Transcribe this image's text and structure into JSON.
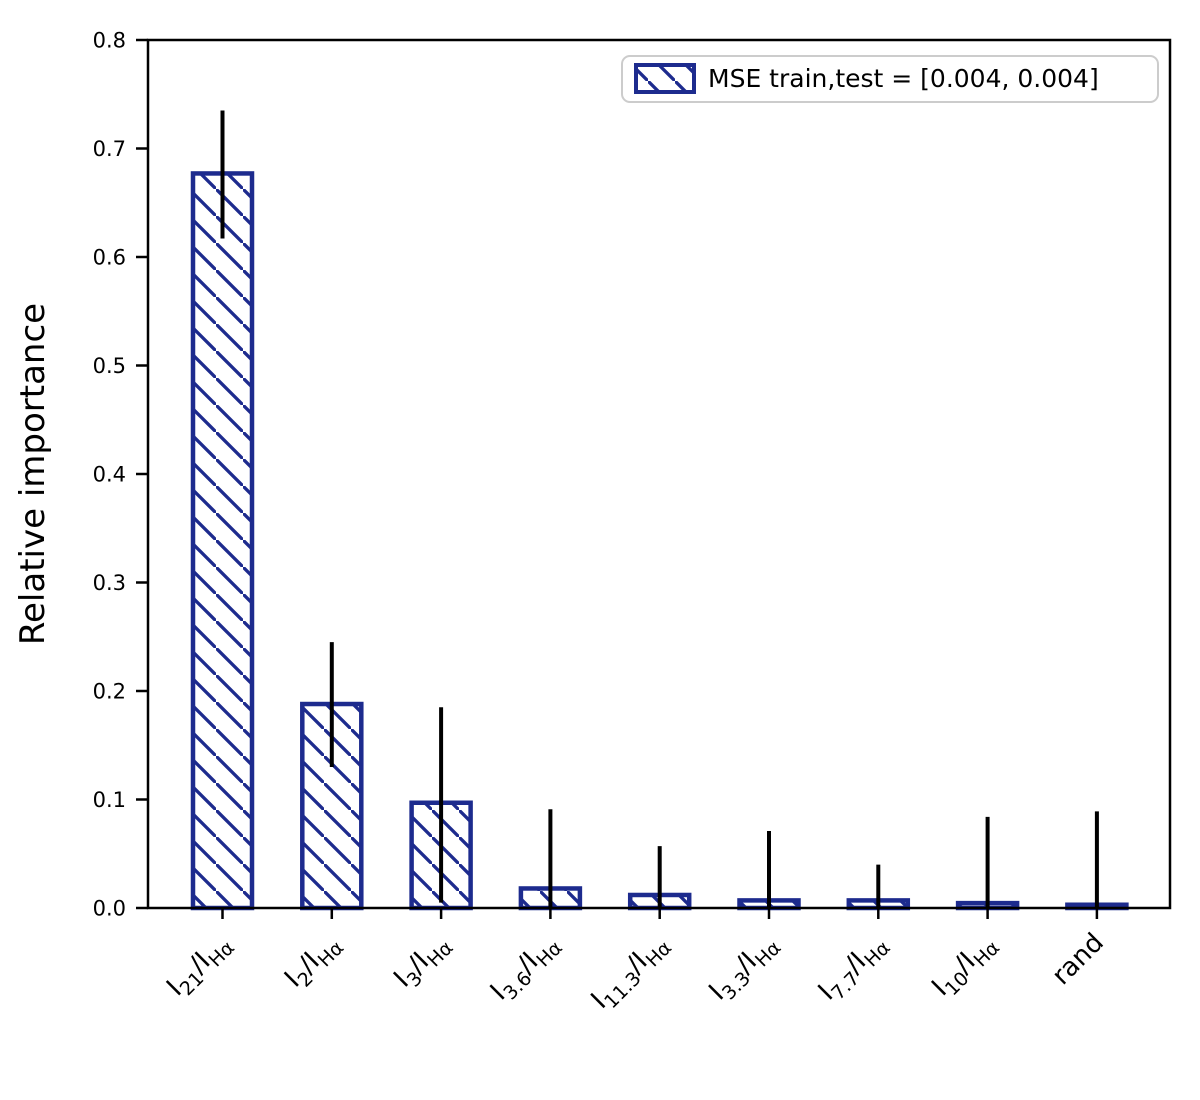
{
  "chart_data": {
    "type": "bar",
    "title": "",
    "xlabel": "",
    "ylabel": "Relative importance",
    "ylim": [
      0.0,
      0.8
    ],
    "yticks": [
      "0.0",
      "0.1",
      "0.2",
      "0.3",
      "0.4",
      "0.5",
      "0.6",
      "0.7",
      "0.8"
    ],
    "grid": false,
    "legend": {
      "position": "upper right",
      "label": "MSE train,test = [0.004, 0.004]",
      "swatch": "hatched-bar"
    },
    "bar_style": {
      "fill": "#ffffff",
      "edge_color": "#1d2b8e",
      "hatch": "\\",
      "error_color": "#000000"
    },
    "categories": [
      "I21/IHa",
      "I2/IHa",
      "I3/IHa",
      "I3.6/IHa",
      "I11.3/IHa",
      "I3.3/IHa",
      "I7.7/IHa",
      "I10/IHa",
      "rand"
    ],
    "categories_rich": [
      {
        "parts": [
          [
            "I",
            0
          ],
          [
            "21",
            1
          ],
          [
            "/I",
            0
          ],
          [
            "Hα",
            1
          ]
        ]
      },
      {
        "parts": [
          [
            "I",
            0
          ],
          [
            "2",
            1
          ],
          [
            "/I",
            0
          ],
          [
            "Hα",
            1
          ]
        ]
      },
      {
        "parts": [
          [
            "I",
            0
          ],
          [
            "3",
            1
          ],
          [
            "/I",
            0
          ],
          [
            "Hα",
            1
          ]
        ]
      },
      {
        "parts": [
          [
            "I",
            0
          ],
          [
            "3.6",
            1
          ],
          [
            "/I",
            0
          ],
          [
            "Hα",
            1
          ]
        ]
      },
      {
        "parts": [
          [
            "I",
            0
          ],
          [
            "11.3",
            1
          ],
          [
            "/I",
            0
          ],
          [
            "Hα",
            1
          ]
        ]
      },
      {
        "parts": [
          [
            "I",
            0
          ],
          [
            "3.3",
            1
          ],
          [
            "/I",
            0
          ],
          [
            "Hα",
            1
          ]
        ]
      },
      {
        "parts": [
          [
            "I",
            0
          ],
          [
            "7.7",
            1
          ],
          [
            "/I",
            0
          ],
          [
            "Hα",
            1
          ]
        ]
      },
      {
        "parts": [
          [
            "I",
            0
          ],
          [
            "10",
            1
          ],
          [
            "/I",
            0
          ],
          [
            "Hα",
            1
          ]
        ]
      },
      {
        "parts": [
          [
            "rand",
            0
          ]
        ]
      }
    ],
    "values": [
      0.677,
      0.188,
      0.097,
      0.018,
      0.012,
      0.007,
      0.007,
      0.0045,
      0.003
    ],
    "whisker_low": [
      0.617,
      0.13,
      0.005,
      0.0,
      0.0,
      0.0,
      0.0,
      0.0,
      0.0
    ],
    "whisker_high": [
      0.735,
      0.245,
      0.185,
      0.091,
      0.057,
      0.071,
      0.04,
      0.084,
      0.089
    ]
  }
}
